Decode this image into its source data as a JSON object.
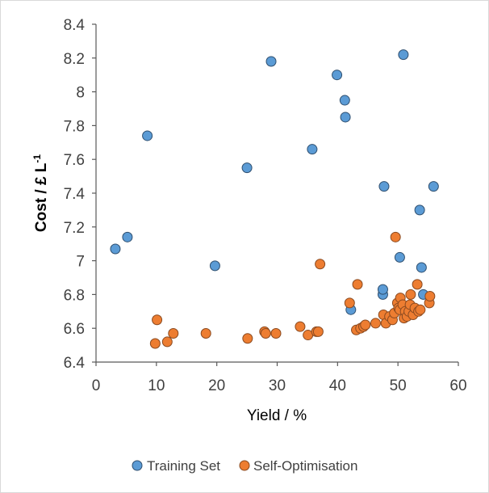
{
  "chart_data": {
    "type": "scatter",
    "title": "",
    "xlabel": "Yield / %",
    "ylabel": "Cost / £ L",
    "ylabel_sup": "-1",
    "xlim": [
      0,
      60
    ],
    "ylim": [
      6.4,
      8.4
    ],
    "x_ticks": [
      "0",
      "10",
      "20",
      "30",
      "40",
      "50",
      "60"
    ],
    "y_ticks": [
      "6.4",
      "6.6",
      "6.8",
      "7",
      "7.2",
      "7.4",
      "7.6",
      "7.8",
      "8",
      "8.2",
      "8.4"
    ],
    "grid": false,
    "legend_position": "bottom",
    "series": [
      {
        "name": "Training Set",
        "color": "#5b9bd5",
        "points": [
          [
            3.2,
            7.07
          ],
          [
            5.2,
            7.14
          ],
          [
            8.5,
            7.74
          ],
          [
            19.7,
            6.97
          ],
          [
            25.0,
            7.55
          ],
          [
            29.0,
            8.18
          ],
          [
            35.8,
            7.66
          ],
          [
            39.9,
            8.1
          ],
          [
            41.2,
            7.95
          ],
          [
            41.3,
            7.85
          ],
          [
            42.2,
            6.71
          ],
          [
            47.5,
            6.8
          ],
          [
            47.5,
            6.83
          ],
          [
            47.7,
            7.44
          ],
          [
            50.3,
            7.02
          ],
          [
            50.9,
            8.22
          ],
          [
            53.6,
            7.3
          ],
          [
            53.9,
            6.96
          ],
          [
            54.2,
            6.8
          ],
          [
            55.9,
            7.44
          ]
        ]
      },
      {
        "name": "Self-Optimisation",
        "color": "#ed7d31",
        "points": [
          [
            9.8,
            6.51
          ],
          [
            10.1,
            6.65
          ],
          [
            11.8,
            6.52
          ],
          [
            12.8,
            6.57
          ],
          [
            18.2,
            6.57
          ],
          [
            25.1,
            6.54
          ],
          [
            27.9,
            6.58
          ],
          [
            28.1,
            6.57
          ],
          [
            29.8,
            6.57
          ],
          [
            33.8,
            6.61
          ],
          [
            35.1,
            6.56
          ],
          [
            36.5,
            6.58
          ],
          [
            36.8,
            6.58
          ],
          [
            37.1,
            6.98
          ],
          [
            42.0,
            6.75
          ],
          [
            43.1,
            6.59
          ],
          [
            43.3,
            6.86
          ],
          [
            43.8,
            6.6
          ],
          [
            44.3,
            6.61
          ],
          [
            44.6,
            6.62
          ],
          [
            46.3,
            6.63
          ],
          [
            47.6,
            6.68
          ],
          [
            48.0,
            6.63
          ],
          [
            48.6,
            6.67
          ],
          [
            49.1,
            6.65
          ],
          [
            49.4,
            6.69
          ],
          [
            49.6,
            7.14
          ],
          [
            49.9,
            6.75
          ],
          [
            50.1,
            6.72
          ],
          [
            50.3,
            6.71
          ],
          [
            50.4,
            6.78
          ],
          [
            50.8,
            6.74
          ],
          [
            51.0,
            6.66
          ],
          [
            51.2,
            6.7
          ],
          [
            51.5,
            6.67
          ],
          [
            51.8,
            6.7
          ],
          [
            52.0,
            6.74
          ],
          [
            52.1,
            6.8
          ],
          [
            52.5,
            6.68
          ],
          [
            52.8,
            6.72
          ],
          [
            53.2,
            6.86
          ],
          [
            53.4,
            6.7
          ],
          [
            53.7,
            6.71
          ],
          [
            55.2,
            6.75
          ],
          [
            55.3,
            6.79
          ]
        ]
      }
    ]
  }
}
